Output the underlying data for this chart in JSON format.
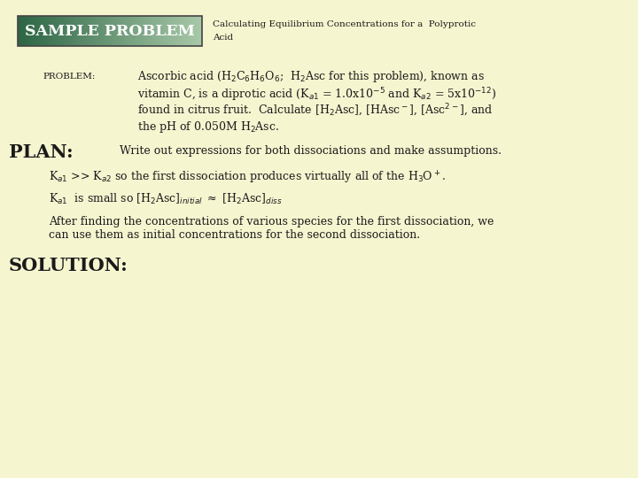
{
  "background_color": "#f5f5d0",
  "header_box_dark": "#2d6645",
  "header_box_light": "#a8c8a8",
  "header_text": "SAMPLE PROBLEM",
  "header_title_line1": "Calculating Equilibrium Concentrations for a  Polyprotic",
  "header_title_line2": "Acid",
  "problem_label": "PROBLEM:",
  "plan_label": "PLAN:",
  "solution_label": "SOLUTION:",
  "text_color": "#1a1a1a",
  "font_family": "DejaVu Serif",
  "body_fontsize": 9.0,
  "plan_fontsize": 15.0,
  "solution_fontsize": 15.0,
  "header_fontsize": 12.5,
  "problem_fontsize": 7.5,
  "header_title_fontsize": 7.5
}
